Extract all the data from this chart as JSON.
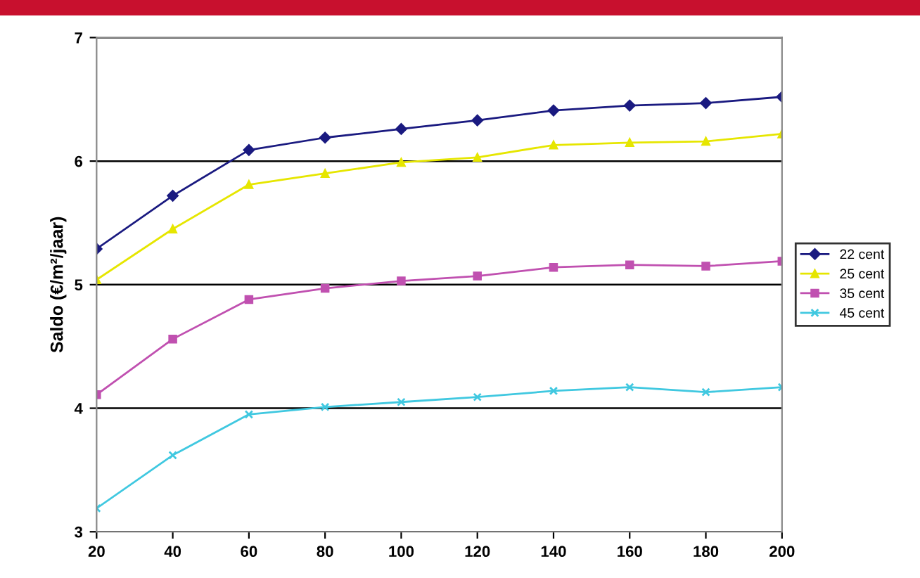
{
  "chart_data": {
    "type": "line",
    "ylabel": "Saldo (€/m²/jaar)",
    "x": [
      20,
      40,
      60,
      80,
      100,
      120,
      140,
      160,
      180,
      200
    ],
    "xlim": [
      20,
      200
    ],
    "xticks": [
      20,
      40,
      60,
      80,
      100,
      120,
      140,
      160,
      180,
      200
    ],
    "ylim": [
      3,
      7
    ],
    "yticks": [
      3,
      4,
      5,
      6,
      7
    ],
    "grid": "y",
    "legend": "right",
    "series": [
      {
        "name": "22 cent",
        "color": "#1a1a80",
        "marker": "diamond",
        "values": [
          5.29,
          5.72,
          6.09,
          6.19,
          6.26,
          6.33,
          6.41,
          6.45,
          6.47,
          6.52
        ]
      },
      {
        "name": "25 cent",
        "color": "#e6e600",
        "marker": "triangle",
        "values": [
          5.04,
          5.45,
          5.81,
          5.9,
          5.99,
          6.03,
          6.13,
          6.15,
          6.16,
          6.22
        ]
      },
      {
        "name": "35 cent",
        "color": "#c050b0",
        "marker": "square",
        "values": [
          4.11,
          4.56,
          4.88,
          4.97,
          5.03,
          5.07,
          5.14,
          5.16,
          5.15,
          5.19
        ]
      },
      {
        "name": "45 cent",
        "color": "#40c8e0",
        "marker": "cross",
        "values": [
          3.19,
          3.62,
          3.95,
          4.01,
          4.05,
          4.09,
          4.14,
          4.17,
          4.13,
          4.17
        ]
      }
    ]
  }
}
